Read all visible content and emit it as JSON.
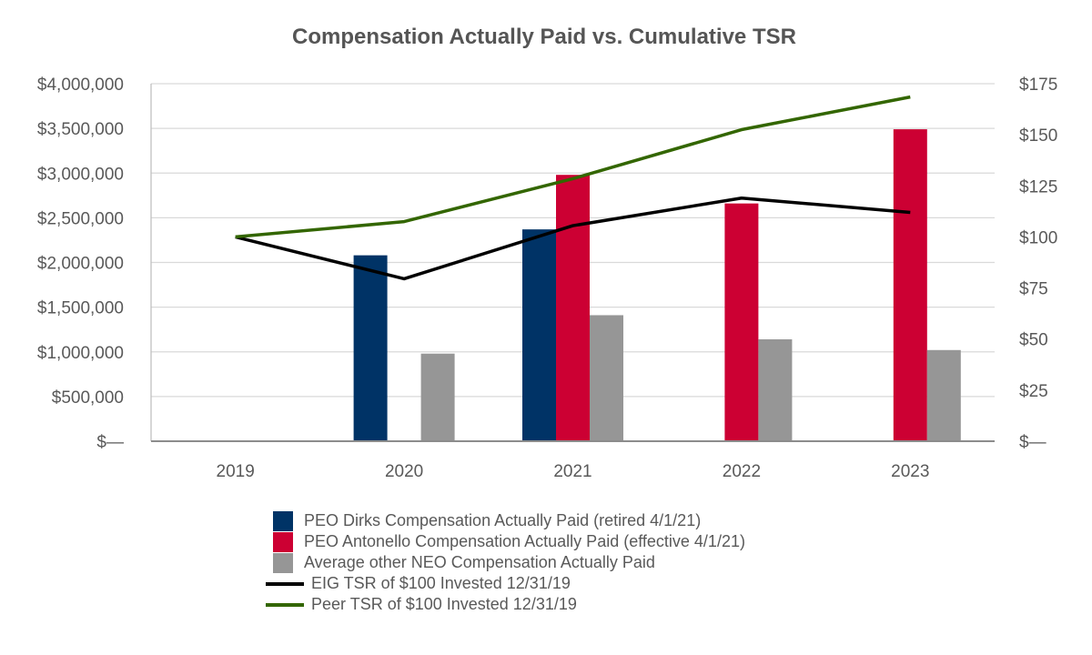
{
  "chart_data": {
    "type": "bar",
    "title": "Compensation Actually Paid vs. Cumulative TSR",
    "categories": [
      "2019",
      "2020",
      "2021",
      "2022",
      "2023"
    ],
    "y_left": {
      "ylim": [
        0,
        4000000
      ],
      "ticks": [
        0,
        500000,
        1000000,
        1500000,
        2000000,
        2500000,
        3000000,
        3500000,
        4000000
      ],
      "tick_labels": [
        "$—",
        "$500,000",
        "$1,000,000",
        "$1,500,000",
        "$2,000,000",
        "$2,500,000",
        "$3,000,000",
        "$3,500,000",
        "$4,000,000"
      ]
    },
    "y_right": {
      "ylim": [
        0,
        175
      ],
      "ticks": [
        0,
        25,
        50,
        75,
        100,
        125,
        150,
        175
      ],
      "tick_labels": [
        "$—",
        "$25",
        "$50",
        "$75",
        "$100",
        "$125",
        "$150",
        "$175"
      ]
    },
    "bar_series": [
      {
        "name": "PEO Dirks Compensation Actually Paid (retired 4/1/21)",
        "color": "#003366",
        "values": [
          null,
          2080000,
          2370000,
          null,
          null
        ]
      },
      {
        "name": "PEO Antonello Compensation Actually Paid (effective 4/1/21)",
        "color": "#CC0033",
        "values": [
          null,
          null,
          2980000,
          2660000,
          3490000
        ]
      },
      {
        "name": "Average other NEO Compensation Actually Paid",
        "color": "#969696",
        "values": [
          null,
          980000,
          1410000,
          1140000,
          1020000
        ]
      }
    ],
    "line_series": [
      {
        "name": "EIG TSR of $100 Invested 12/31/19",
        "color": "#000000",
        "axis": "right",
        "values": [
          100,
          79.5,
          105.5,
          119,
          112
        ]
      },
      {
        "name": "Peer TSR of $100 Invested 12/31/19",
        "color": "#336600",
        "axis": "right",
        "values": [
          100,
          107.5,
          128.5,
          152.5,
          168.5
        ]
      }
    ],
    "grid": true,
    "legend_position": "bottom"
  }
}
